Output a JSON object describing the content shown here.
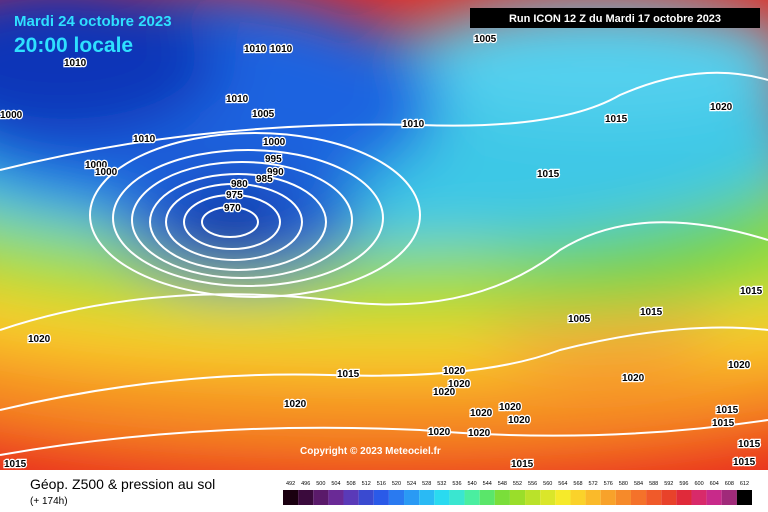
{
  "header": {
    "date": "Mardi 24 octobre 2023",
    "time": "20:00 locale",
    "run": "Run ICON 12 Z du Mardi 17 octobre 2023"
  },
  "copyright": "Copyright © 2023 Meteociel.fr",
  "legend": {
    "title": "Géop. Z500 & pression au sol",
    "lead": "(+ 174h)",
    "scale": [
      492,
      496,
      500,
      504,
      508,
      512,
      516,
      520,
      524,
      528,
      532,
      536,
      540,
      544,
      548,
      552,
      556,
      560,
      564,
      568,
      572,
      576,
      580,
      584,
      588,
      592,
      596,
      600,
      604,
      608,
      612
    ]
  },
  "isobars": [
    1010,
    1010,
    1010,
    1005,
    1010,
    1005,
    1010,
    1000,
    1010,
    1015,
    1020,
    1000,
    995,
    990,
    985,
    980,
    975,
    970,
    1000,
    1000,
    1015,
    1015,
    1005,
    1015,
    1020,
    1015,
    1020,
    1020,
    1020,
    1020,
    1020,
    1020,
    1020,
    1020,
    1020,
    1020,
    1020,
    1015,
    1015,
    1015,
    1015,
    1015,
    1015
  ]
}
